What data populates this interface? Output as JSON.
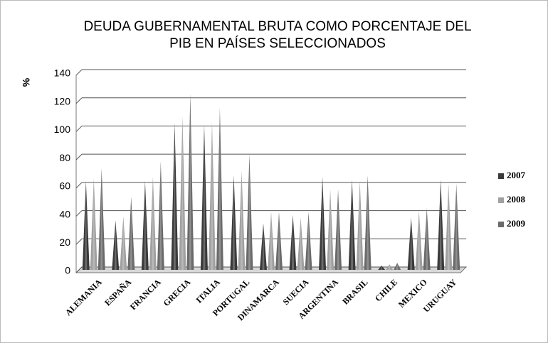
{
  "chart_data": {
    "type": "bar",
    "title": [
      "DEUDA GUBERNAMENTAL BRUTA COMO PORCENTAJE DEL",
      "PIB EN PAÍSES SELECCIONADOS"
    ],
    "y_label": "%",
    "categories": [
      "ALEMANIA",
      "ESPAÑA",
      "FRANCIA",
      "GRECIA",
      "ITALIA",
      "PORTUGAL",
      "DINAMARCA",
      "SUECIA",
      "ARGENTINA",
      "BRASIL",
      "CHILE",
      "MEXICO",
      "URUGUAY"
    ],
    "series": [
      {
        "name": "2007",
        "color": "#3a3a3a",
        "values": [
          64,
          36,
          64,
          105,
          104,
          68,
          34,
          40,
          67,
          65,
          4,
          38,
          65
        ]
      },
      {
        "name": "2008",
        "color": "#a0a0a0",
        "values": [
          66,
          39,
          67,
          110,
          106,
          71,
          42,
          38,
          58,
          64,
          5,
          43,
          62
        ]
      },
      {
        "name": "2009",
        "color": "#6a6a6a",
        "values": [
          73,
          53,
          78,
          126,
          116,
          83,
          42,
          42,
          58,
          68,
          6,
          45,
          62
        ]
      }
    ],
    "ylim": [
      0,
      140
    ],
    "yticks": [
      0,
      20,
      40,
      60,
      80,
      100,
      120,
      140
    ],
    "grid": true,
    "legend": "right"
  }
}
